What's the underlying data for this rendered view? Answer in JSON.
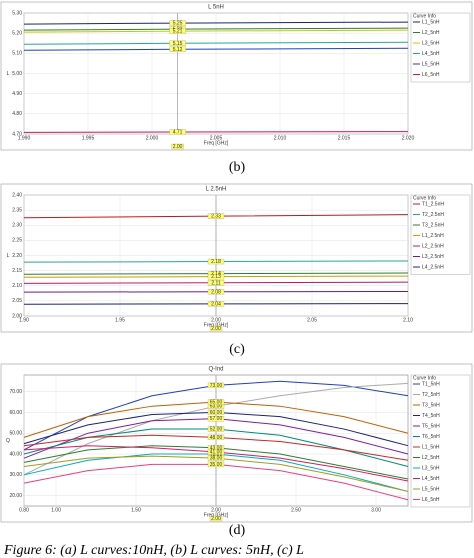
{
  "figure_caption": "Figure 6: (a) L curves:10nH, (b) L curves: 5nH, (c) L",
  "chart_data": [
    {
      "type": "line",
      "title": "L 5nH",
      "caption": "(b)",
      "x_label": "Freq [GHz]",
      "y_label": "L",
      "legend_title": "Curve Info",
      "x": [
        1.99,
        2.002,
        2.02
      ],
      "xlim": [
        1.99,
        2.02
      ],
      "xticks": [
        {
          "value": 1.99,
          "label": "1.990"
        },
        1.995,
        {
          "value": 2.0,
          "label": "2.000"
        },
        2.005,
        {
          "value": 2.01,
          "label": "2.010"
        },
        2.015,
        {
          "value": 2.02,
          "label": "2.020"
        }
      ],
      "ylim": [
        4.7,
        5.3
      ],
      "yticks": [
        {
          "value": 4.7,
          "label": "4.70"
        },
        {
          "value": 4.8,
          "label": "4.80"
        },
        {
          "value": 4.9,
          "label": "4.90"
        },
        {
          "value": 5.0,
          "label": "5.00"
        },
        {
          "value": 5.1,
          "label": "5.10"
        },
        {
          "value": 5.2,
          "label": "5.20"
        },
        {
          "value": 5.3,
          "label": "5.30"
        }
      ],
      "marker": {
        "value": 2.002,
        "label": "2.00"
      },
      "series": [
        {
          "name": "L1_5nH",
          "color": "#1a237e",
          "values": [
            5.245,
            5.25,
            5.255
          ],
          "marker_label": "5.25"
        },
        {
          "name": "L2_5nH",
          "color": "#2e7d32",
          "values": [
            5.215,
            5.22,
            5.225
          ],
          "marker_label": "5.22"
        },
        {
          "name": "L3_5nH",
          "color": "#c8c800",
          "values": [
            5.205,
            5.21,
            5.215
          ],
          "marker_label": "5.21"
        },
        {
          "name": "L4_5nH",
          "color": "#26a69a",
          "values": [
            5.145,
            5.15,
            5.155
          ],
          "marker_label": "5.15"
        },
        {
          "name": "L5_5nH",
          "color": "#1e40c0",
          "values": [
            5.115,
            5.12,
            5.125
          ],
          "marker_label": "5.12"
        },
        {
          "name": "L6_5nH",
          "color": "#c2185b",
          "values": [
            4.708,
            4.71,
            4.712
          ],
          "marker_label": "4.71"
        }
      ]
    },
    {
      "type": "line",
      "title": "L 2.5nH",
      "caption": "(c)",
      "x_label": "Freq [GHz]",
      "y_label": "L",
      "legend_title": "Curve Info",
      "x": [
        1.9,
        2.0,
        2.1
      ],
      "xlim": [
        1.9,
        2.1
      ],
      "xticks": [
        {
          "value": 1.9,
          "label": "1.90"
        },
        1.95,
        {
          "value": 2.0,
          "label": "2.00"
        },
        2.05,
        {
          "value": 2.1,
          "label": "2.10"
        }
      ],
      "ylim": [
        2.0,
        2.4
      ],
      "yticks": [
        {
          "value": 2.0,
          "label": "2.00"
        },
        2.05,
        {
          "value": 2.1,
          "label": "2.10"
        },
        2.15,
        {
          "value": 2.2,
          "label": "2.20"
        },
        2.25,
        {
          "value": 2.3,
          "label": "2.30"
        },
        2.35,
        {
          "value": 2.4,
          "label": "2.40"
        }
      ],
      "marker": {
        "value": 2.0,
        "label": "2.00"
      },
      "series": [
        {
          "name": "T1_2.5nH",
          "color": "#b71c1c",
          "values": [
            2.325,
            2.33,
            2.335
          ],
          "marker_label": "2.33"
        },
        {
          "name": "T2_2.5nH",
          "color": "#26a69a",
          "values": [
            2.178,
            2.18,
            2.182
          ],
          "marker_label": "2.18"
        },
        {
          "name": "T3_2.5nH",
          "color": "#2e7d32",
          "values": [
            2.138,
            2.14,
            2.142
          ],
          "marker_label": "2.14"
        },
        {
          "name": "L1_2.5nH",
          "color": "#c8a000",
          "values": [
            2.128,
            2.13,
            2.132
          ],
          "marker_label": "2.13"
        },
        {
          "name": "L2_2.5nH",
          "color": "#c2185b",
          "values": [
            2.108,
            2.11,
            2.112
          ],
          "marker_label": "2.11"
        },
        {
          "name": "L3_2.5nH",
          "color": "#6a1b9a",
          "values": [
            2.079,
            2.08,
            2.081
          ],
          "marker_label": "2.08"
        },
        {
          "name": "L4_2.5nH",
          "color": "#1a237e",
          "values": [
            2.039,
            2.04,
            2.041
          ],
          "marker_label": "2.04"
        }
      ]
    },
    {
      "type": "line",
      "title": "Q-Ind",
      "caption": "(d)",
      "x_label": "Freq [GHz]",
      "y_label": "Q",
      "legend_title": "Curve Info",
      "x": [
        0.8,
        1.2,
        1.6,
        2.0,
        2.4,
        2.8,
        3.2
      ],
      "xlim": [
        0.8,
        3.2
      ],
      "xticks": [
        {
          "value": 0.8,
          "label": "0.80"
        },
        {
          "value": 1.0,
          "label": "1.00"
        },
        {
          "value": 1.5,
          "label": "1.50"
        },
        {
          "value": 2.0,
          "label": "2.00"
        },
        {
          "value": 2.5,
          "label": "2.50"
        },
        {
          "value": 3.0,
          "label": "3.00"
        }
      ],
      "ylim": [
        15,
        78
      ],
      "yticks": [
        {
          "value": 20,
          "label": "20.00"
        },
        {
          "value": 30,
          "label": "30.00"
        },
        {
          "value": 40,
          "label": "40.00"
        },
        {
          "value": 50,
          "label": "50.00"
        },
        {
          "value": 60,
          "label": "60.00"
        },
        {
          "value": 70,
          "label": "70.00"
        }
      ],
      "marker": {
        "value": 2.0,
        "label": "2.00"
      },
      "series": [
        {
          "name": "T1_5nH",
          "color": "#1e40c0",
          "values": [
            42,
            58,
            68,
            73,
            75,
            73,
            68
          ],
          "marker_label": "73.00"
        },
        {
          "name": "T2_5nH",
          "color": "#aaaaaa",
          "values": [
            30,
            45,
            56,
            63,
            68,
            72,
            74
          ],
          "marker_label": "63.00"
        },
        {
          "name": "T3_5nH",
          "color": "#c06000",
          "values": [
            48,
            58,
            63,
            65,
            63,
            58,
            50
          ],
          "marker_label": "65.00"
        },
        {
          "name": "T4_5nH",
          "color": "#1a237e",
          "values": [
            45,
            54,
            59,
            60,
            58,
            52,
            44
          ],
          "marker_label": "60.00"
        },
        {
          "name": "T5_5nH",
          "color": "#7b1fa2",
          "values": [
            38,
            50,
            56,
            57,
            54,
            48,
            40
          ],
          "marker_label": "57.00"
        },
        {
          "name": "T6_5nH",
          "color": "#00897b",
          "values": [
            40,
            48,
            52,
            52,
            49,
            42,
            34
          ],
          "marker_label": "52.00"
        },
        {
          "name": "L1_5nH",
          "color": "#c62828",
          "values": [
            44,
            48,
            49,
            48,
            46,
            42,
            37
          ],
          "marker_label": "48.00"
        },
        {
          "name": "L2_5nH",
          "color": "#2e7d32",
          "values": [
            36,
            42,
            44,
            43,
            40,
            34,
            28
          ],
          "marker_label": "43.00"
        },
        {
          "name": "L3_5nH",
          "color": "#00acc1",
          "values": [
            30,
            37,
            40,
            40,
            37,
            30,
            22
          ],
          "marker_label": "40.00"
        },
        {
          "name": "L4_5nH",
          "color": "#d81b60",
          "values": [
            42,
            44,
            43,
            41,
            38,
            33,
            27
          ],
          "marker_label": "41.00"
        },
        {
          "name": "L5_5nH",
          "color": "#9e9d24",
          "values": [
            34,
            38,
            39,
            38,
            35,
            29,
            22
          ],
          "marker_label": "38.00"
        },
        {
          "name": "L6_5nH",
          "color": "#ec407a",
          "values": [
            26,
            32,
            35,
            35,
            32,
            26,
            18
          ],
          "marker_label": "35.00"
        }
      ]
    }
  ]
}
